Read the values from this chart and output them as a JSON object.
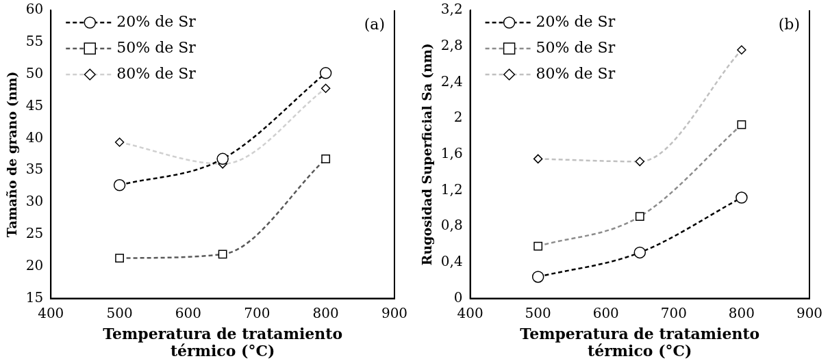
{
  "chart_data": [
    {
      "type": "line",
      "xlabel": "Temperatura de tratamiento térmico (°C)",
      "ylabel": "Tamaño de grano (nm)",
      "annotations": [
        "(a)"
      ],
      "x": [
        500,
        650,
        800
      ],
      "xlim": [
        400,
        900
      ],
      "xticks": [
        400,
        500,
        600,
        700,
        800,
        900
      ],
      "ylim": [
        15,
        60
      ],
      "yticks": [
        15,
        20,
        25,
        30,
        35,
        40,
        45,
        50,
        55,
        60
      ],
      "grid": false,
      "legend": "top left",
      "line_style": "dashed",
      "series": [
        {
          "name": "20% de Sr",
          "color": "#000000",
          "marker": "circle",
          "values": [
            32.7,
            36.8,
            50.2
          ]
        },
        {
          "name": "50% de Sr",
          "color": "#595959",
          "marker": "square",
          "values": [
            21.3,
            21.9,
            36.8
          ]
        },
        {
          "name": "80% de Sr",
          "color": "#d0d0d0",
          "marker": "diamond",
          "values": [
            39.4,
            36.0,
            47.8
          ]
        }
      ]
    },
    {
      "type": "line",
      "xlabel": "Temperatura de tratamiento térmico (°C)",
      "ylabel": "Rugosidad Superficial Sa (nm)",
      "annotations": [
        "(b)"
      ],
      "x": [
        500,
        650,
        800
      ],
      "xlim": [
        400,
        900
      ],
      "xticks": [
        400,
        500,
        600,
        700,
        800,
        900
      ],
      "ylim": [
        0,
        3.2
      ],
      "yticks": [
        0,
        {
          "value": 0.4,
          "label": "0,4"
        },
        {
          "value": 0.8,
          "label": "0,8"
        },
        {
          "value": 1.2,
          "label": "1,2"
        },
        {
          "value": 1.6,
          "label": "1,6"
        },
        2,
        {
          "value": 2.4,
          "label": "2,4"
        },
        {
          "value": 2.8,
          "label": "2,8"
        },
        {
          "value": 3.2,
          "label": "3,2"
        }
      ],
      "grid": false,
      "legend": "top left",
      "line_style": "dashed",
      "series": [
        {
          "name": "20% de Sr",
          "color": "#000000",
          "marker": "circle",
          "values": [
            0.24,
            0.51,
            1.12
          ]
        },
        {
          "name": "50% de Sr",
          "color": "#8c8c8c",
          "marker": "square",
          "values": [
            0.58,
            0.91,
            1.93
          ]
        },
        {
          "name": "80% de Sr",
          "color": "#c0c0c0",
          "marker": "diamond",
          "values": [
            1.55,
            1.52,
            2.76
          ]
        }
      ]
    }
  ]
}
